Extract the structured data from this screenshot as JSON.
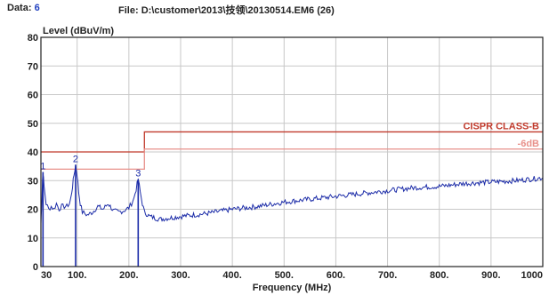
{
  "header": {
    "data_label": "Data:",
    "data_value": "6",
    "file_label": "File:",
    "file_path": "D:\\customer\\2013\\技领\\20130514.EM6",
    "file_count": "(26)"
  },
  "colors": {
    "trace": "#1c2ca8",
    "limit": "#c0392b",
    "limit_margin": "#e8908a",
    "grid": "#c8c8c8",
    "marker_text": "#1c2ca8"
  },
  "chart_data": {
    "type": "line",
    "title": "",
    "xlabel": "Frequency (MHz)",
    "ylabel": "Level (dBuV/m)",
    "xlim": [
      30,
      1000
    ],
    "ylim": [
      0,
      80
    ],
    "x_ticks": [
      30,
      100,
      200,
      300,
      400,
      500,
      600,
      700,
      800,
      900,
      1000
    ],
    "x_tick_labels": [
      "30",
      "100.",
      "200.",
      "300.",
      "400.",
      "500.",
      "600.",
      "700.",
      "800.",
      "900.",
      "1000"
    ],
    "y_ticks": [
      0,
      10,
      20,
      30,
      40,
      50,
      60,
      70,
      80
    ],
    "y_tick_labels": [
      "0",
      "10",
      "20",
      "30",
      "40",
      "50",
      "60",
      "70",
      "80"
    ],
    "grid": true,
    "limit_lines": [
      {
        "name": "CISPR CLASS-B",
        "segments": [
          {
            "x": [
              30,
              230
            ],
            "y": 40
          },
          {
            "x": [
              230,
              1000
            ],
            "y": 47
          }
        ]
      },
      {
        "name": "-6dB",
        "segments": [
          {
            "x": [
              30,
              230
            ],
            "y": 34
          },
          {
            "x": [
              230,
              1000
            ],
            "y": 41
          }
        ]
      }
    ],
    "markers": [
      {
        "label": "1",
        "x": 34,
        "y": 33
      },
      {
        "label": "2",
        "x": 97,
        "y": 35.5
      },
      {
        "label": "3",
        "x": 218,
        "y": 30.5
      }
    ],
    "series": [
      {
        "x": [
          30,
          31,
          33,
          34,
          36,
          40,
          45,
          50,
          55,
          60,
          65,
          70,
          75,
          80,
          85,
          88,
          91,
          94,
          97,
          100,
          103,
          106,
          110,
          115,
          120,
          130,
          140,
          150,
          160,
          170,
          180,
          190,
          200,
          205,
          210,
          214,
          218,
          222,
          226,
          230,
          240,
          250,
          260,
          280,
          300,
          350,
          400,
          450,
          500,
          550,
          600,
          650,
          700,
          750,
          800,
          850,
          900,
          950,
          1000
        ],
        "y": [
          15,
          20,
          30,
          33,
          28,
          22,
          20,
          21,
          20,
          22,
          20,
          21,
          21,
          21,
          22,
          24,
          28,
          32,
          35.5,
          32,
          26,
          22,
          19,
          18.5,
          18,
          19,
          21,
          20,
          22,
          19.5,
          19,
          19.5,
          20.5,
          22,
          24,
          27,
          30.5,
          26,
          22,
          19,
          17.5,
          17,
          16.5,
          17,
          17.5,
          18.5,
          20,
          21,
          22.5,
          23.5,
          24.5,
          25.5,
          26.5,
          27.5,
          28,
          29,
          29.5,
          30,
          31
        ]
      }
    ]
  }
}
